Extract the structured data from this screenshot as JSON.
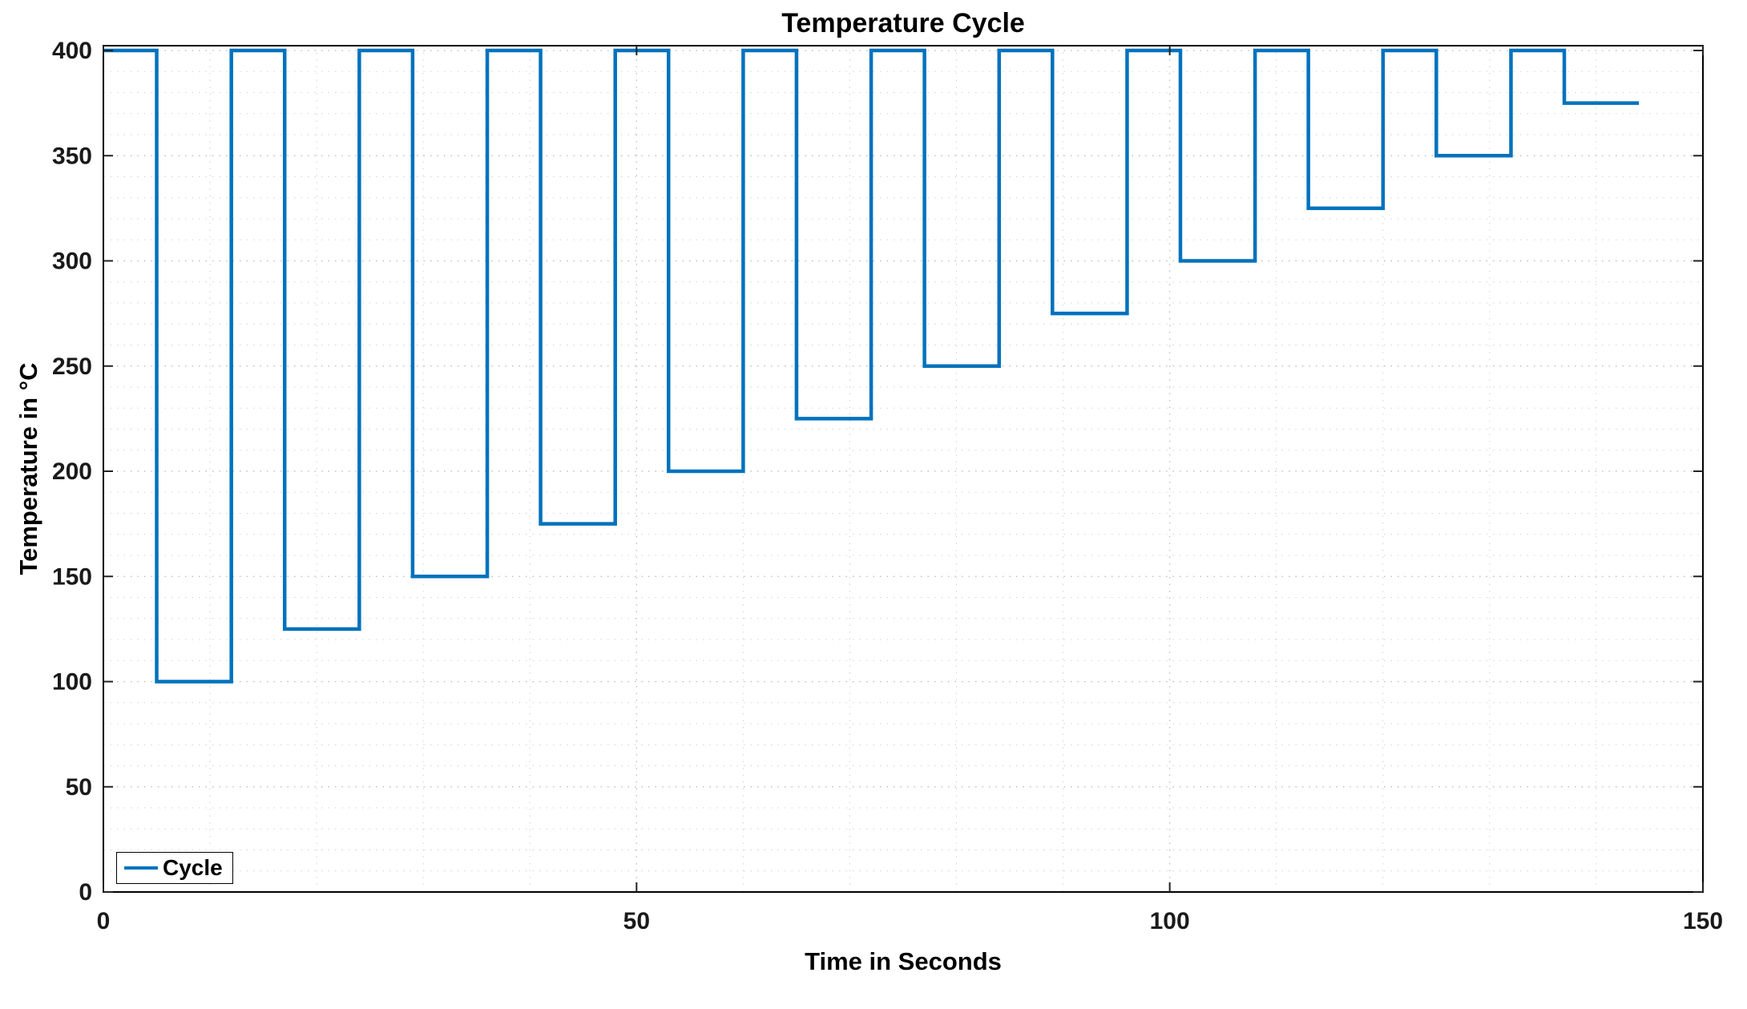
{
  "figure": {
    "background": "#ffffff"
  },
  "chart_data": {
    "type": "line",
    "title": "Temperature Cycle",
    "xlabel": "Time in Seconds",
    "ylabel": "Temperature in °C",
    "xlim": [
      0,
      150
    ],
    "ylim": [
      0,
      400
    ],
    "xticks": [
      0,
      50,
      100,
      150
    ],
    "yticks": [
      0,
      50,
      100,
      150,
      200,
      250,
      300,
      350,
      400
    ],
    "minor_grid_step_x": 10,
    "minor_grid_step_y": 10,
    "grid": "major and minor dotted gridlines shown",
    "line_color": "#0072BD",
    "axes_box_color": "#000000",
    "legend": {
      "position": "bottom-left",
      "entries": [
        {
          "label": "Cycle",
          "color": "#0072BD"
        }
      ]
    },
    "series": [
      {
        "name": "Cycle",
        "style": "square-wave step",
        "high_level": 400,
        "steps_t_start_t_end_value": [
          [
            0,
            5,
            400
          ],
          [
            5,
            12,
            100
          ],
          [
            12,
            17,
            400
          ],
          [
            17,
            24,
            125
          ],
          [
            24,
            29,
            400
          ],
          [
            29,
            36,
            150
          ],
          [
            36,
            41,
            400
          ],
          [
            41,
            48,
            175
          ],
          [
            48,
            53,
            400
          ],
          [
            53,
            60,
            200
          ],
          [
            60,
            65,
            400
          ],
          [
            65,
            72,
            225
          ],
          [
            72,
            77,
            400
          ],
          [
            77,
            84,
            250
          ],
          [
            84,
            89,
            400
          ],
          [
            89,
            96,
            275
          ],
          [
            96,
            101,
            400
          ],
          [
            101,
            108,
            300
          ],
          [
            108,
            113,
            400
          ],
          [
            113,
            120,
            325
          ],
          [
            120,
            125,
            400
          ],
          [
            125,
            132,
            350
          ],
          [
            132,
            137,
            400
          ],
          [
            137,
            144,
            375
          ]
        ]
      }
    ]
  }
}
